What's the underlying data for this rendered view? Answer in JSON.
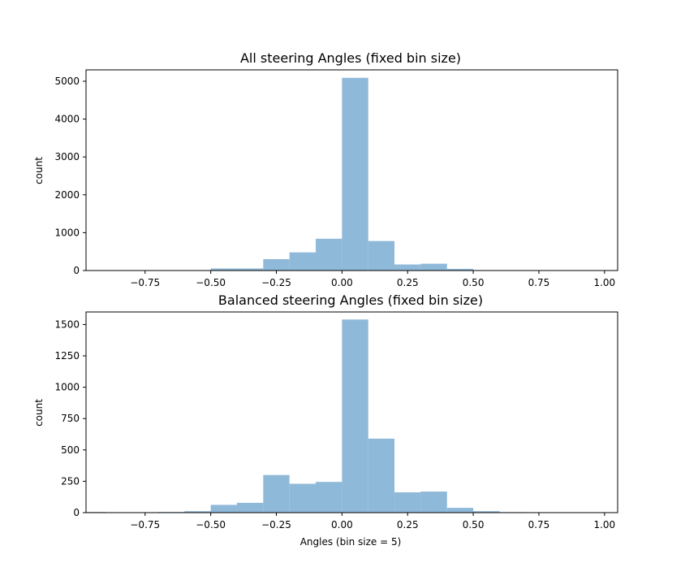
{
  "chart_data": [
    {
      "type": "bar",
      "title": "All steering Angles (fixed bin size)",
      "xlabel": "",
      "ylabel": "count",
      "xlim": [
        -0.975,
        1.05
      ],
      "ylim": [
        0,
        5300
      ],
      "xticks": [
        -0.75,
        -0.5,
        -0.25,
        0.0,
        0.25,
        0.5,
        0.75,
        1.0
      ],
      "xtick_labels": [
        "−0.75",
        "−0.50",
        "−0.25",
        "0.00",
        "0.25",
        "0.50",
        "0.75",
        "1.00"
      ],
      "yticks": [
        0,
        1000,
        2000,
        3000,
        4000,
        5000
      ],
      "ytick_labels": [
        "0",
        "1000",
        "2000",
        "3000",
        "4000",
        "5000"
      ],
      "color": "#8fb9d9",
      "bins": [
        {
          "x0": -0.5,
          "x1": -0.4,
          "value": 55
        },
        {
          "x0": -0.4,
          "x1": -0.3,
          "value": 55
        },
        {
          "x0": -0.3,
          "x1": -0.2,
          "value": 300
        },
        {
          "x0": -0.2,
          "x1": -0.1,
          "value": 480
        },
        {
          "x0": -0.1,
          "x1": 0.0,
          "value": 840
        },
        {
          "x0": 0.0,
          "x1": 0.1,
          "value": 5090
        },
        {
          "x0": 0.1,
          "x1": 0.2,
          "value": 780
        },
        {
          "x0": 0.2,
          "x1": 0.3,
          "value": 160
        },
        {
          "x0": 0.3,
          "x1": 0.4,
          "value": 180
        },
        {
          "x0": 0.4,
          "x1": 0.5,
          "value": 45
        }
      ]
    },
    {
      "type": "bar",
      "title": "Balanced steering Angles (fixed bin size)",
      "xlabel": "Angles (bin size = 5)",
      "ylabel": "count",
      "xlim": [
        -0.975,
        1.05
      ],
      "ylim": [
        0,
        1600
      ],
      "xticks": [
        -0.75,
        -0.5,
        -0.25,
        0.0,
        0.25,
        0.5,
        0.75,
        1.0
      ],
      "xtick_labels": [
        "−0.75",
        "−0.50",
        "−0.25",
        "0.00",
        "0.25",
        "0.50",
        "0.75",
        "1.00"
      ],
      "yticks": [
        0,
        250,
        500,
        750,
        1000,
        1250,
        1500
      ],
      "ytick_labels": [
        "0",
        "250",
        "500",
        "750",
        "1000",
        "1250",
        "1500"
      ],
      "color": "#8fb9d9",
      "bins": [
        {
          "x0": -0.975,
          "x1": -0.9,
          "value": 5
        },
        {
          "x0": -0.7,
          "x1": -0.6,
          "value": 5
        },
        {
          "x0": -0.6,
          "x1": -0.5,
          "value": 12
        },
        {
          "x0": -0.5,
          "x1": -0.4,
          "value": 62
        },
        {
          "x0": -0.4,
          "x1": -0.3,
          "value": 78
        },
        {
          "x0": -0.3,
          "x1": -0.2,
          "value": 300
        },
        {
          "x0": -0.2,
          "x1": -0.1,
          "value": 230
        },
        {
          "x0": -0.1,
          "x1": 0.0,
          "value": 245
        },
        {
          "x0": 0.0,
          "x1": 0.1,
          "value": 1540
        },
        {
          "x0": 0.1,
          "x1": 0.2,
          "value": 590
        },
        {
          "x0": 0.2,
          "x1": 0.3,
          "value": 162
        },
        {
          "x0": 0.3,
          "x1": 0.4,
          "value": 168
        },
        {
          "x0": 0.4,
          "x1": 0.5,
          "value": 38
        },
        {
          "x0": 0.5,
          "x1": 0.6,
          "value": 12
        },
        {
          "x0": 0.6,
          "x1": 0.7,
          "value": 4
        }
      ]
    }
  ]
}
